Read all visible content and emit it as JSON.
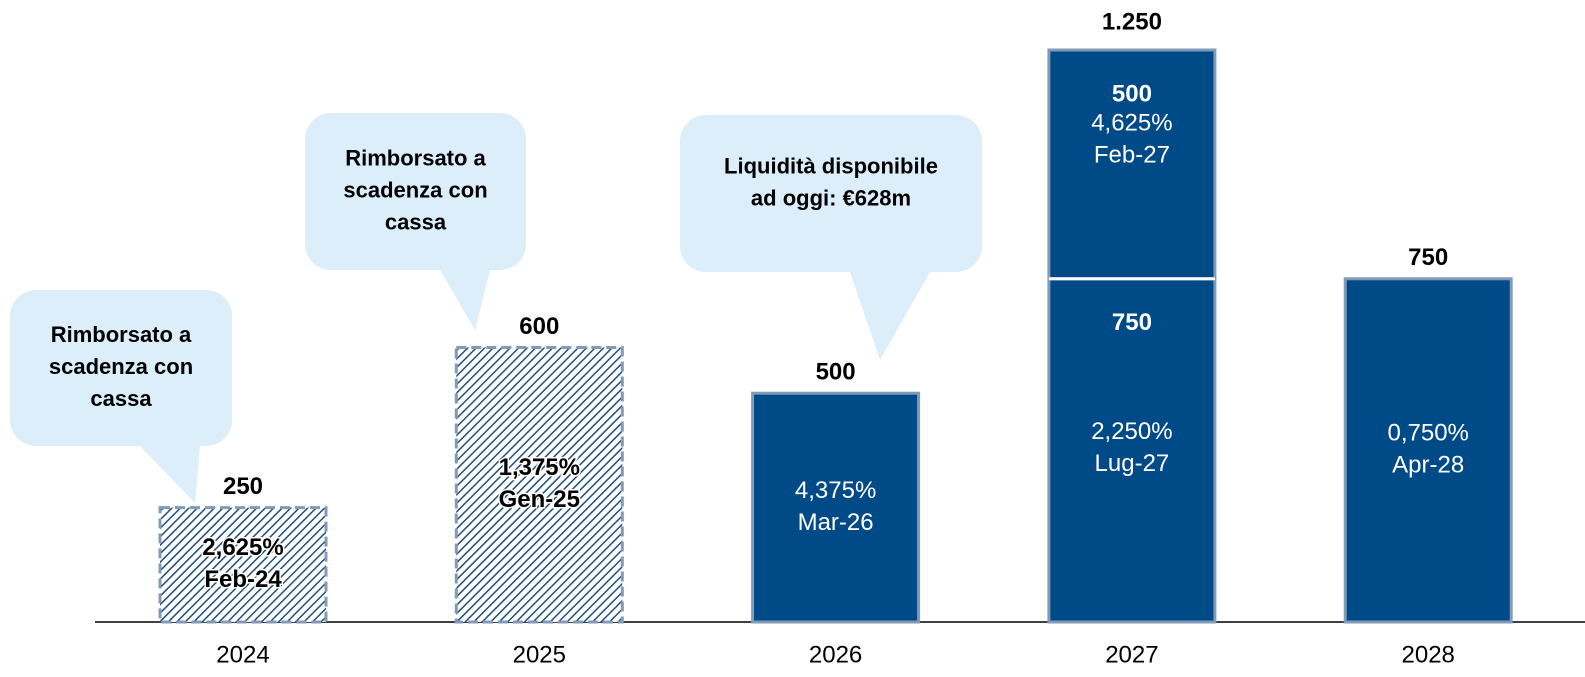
{
  "chart_data": {
    "type": "stacked_bar",
    "categories": [
      "2024",
      "2025",
      "2026",
      "2027",
      "2028"
    ],
    "ylim": [
      0,
      1250
    ],
    "styles": [
      "hatched",
      "hatched",
      "solid",
      "solid",
      "solid"
    ],
    "color": "#004a87",
    "border_color": "#7f9bb8",
    "series": [
      {
        "values": [
          250,
          600,
          500,
          750,
          750
        ],
        "notes": [
          [
            "2,625%",
            "Feb-24"
          ],
          [
            "1,375%",
            "Gen-25"
          ],
          [
            "4,375%",
            "Mar-26"
          ],
          [
            "2,250%",
            "Lug-27"
          ],
          [
            "0,750%",
            "Apr-28"
          ]
        ]
      },
      {
        "values": [
          null,
          null,
          null,
          500,
          null
        ],
        "notes": [
          null,
          null,
          null,
          [
            "4,625%",
            "Feb-27"
          ],
          null
        ]
      }
    ],
    "stack_totals": [
      null,
      null,
      null,
      {
        "value": 1250,
        "label": "1.250"
      },
      null
    ],
    "annotations": [
      {
        "lines": [
          "Rimborsato a",
          "scadenza con",
          "cassa"
        ]
      },
      {
        "lines": [
          "Rimborsato a",
          "scadenza con",
          "cassa"
        ]
      },
      {
        "lines": [
          "Liquidità disponibile",
          "ad oggi: €628m"
        ]
      }
    ]
  }
}
